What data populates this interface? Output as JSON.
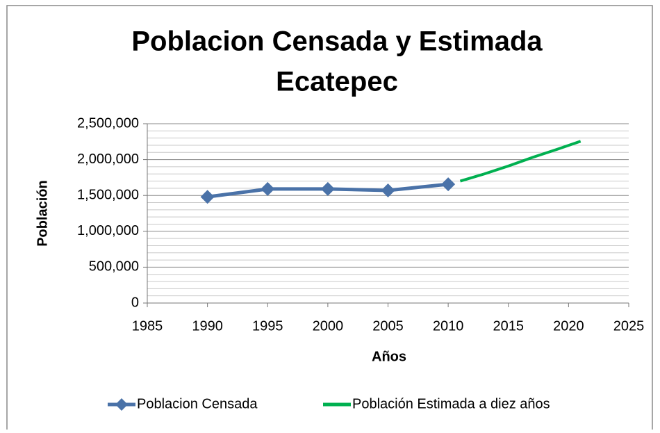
{
  "chart_data": {
    "type": "line",
    "title": [
      "Poblacion Censada y Estimada",
      "Ecatepec"
    ],
    "x_label": "Años",
    "y_label": "Población",
    "xlim": [
      1985,
      2025
    ],
    "xticks": [
      1985,
      1990,
      1995,
      2000,
      2005,
      2010,
      2015,
      2020,
      2025
    ],
    "ylim": [
      0,
      2500000
    ],
    "yticks": [
      0,
      {
        "value": 500000,
        "label": "500,000"
      },
      {
        "value": 1000000,
        "label": "1,000,000"
      },
      {
        "value": 1500000,
        "label": "1,500,000"
      },
      {
        "value": 2000000,
        "label": "2,000,000"
      },
      {
        "value": 2500000,
        "label": "2,500,000"
      }
    ],
    "grid": true,
    "legend": "bottom",
    "series": [
      {
        "name": "Poblacion Censada",
        "color": "#4a72a8",
        "marker": "diamond",
        "x": [
          1990,
          1995,
          2000,
          2005,
          2010
        ],
        "values": [
          1480000,
          1590000,
          1590000,
          1570000,
          1656000
        ]
      },
      {
        "name": "Población Estimada a diez años",
        "color": "#00b050",
        "x": [
          2011,
          2013,
          2015,
          2017,
          2019,
          2021
        ],
        "values": [
          1700000,
          1800000,
          1910000,
          2030000,
          2140000,
          2255000
        ]
      }
    ]
  }
}
